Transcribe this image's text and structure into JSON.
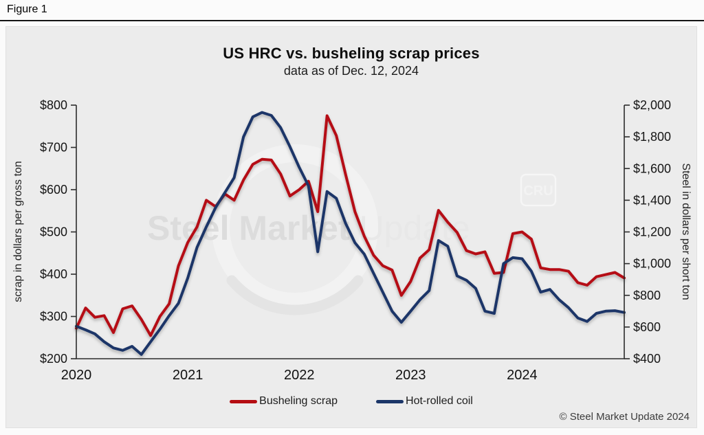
{
  "figure_label": "Figure 1",
  "chart_data": {
    "type": "line",
    "title": "US HRC vs. busheling scrap prices",
    "subtitle": "data as of Dec. 12, 2024",
    "x_unit": "month",
    "x_start": "2020-01",
    "x_end": "2024-12",
    "x_axis": {
      "tick_labels": [
        "2020",
        "2021",
        "2022",
        "2023",
        "2024"
      ],
      "months_per_tick": 12
    },
    "left_axis": {
      "label": "scrap in dollars per gross ton",
      "min": 200,
      "max": 800,
      "tick_step": 100,
      "tick_labels": [
        "$200",
        "$300",
        "$400",
        "$500",
        "$600",
        "$700",
        "$800"
      ]
    },
    "right_axis": {
      "label": "Steel in dollars per short ton",
      "min": 400,
      "max": 2000,
      "tick_step": 200,
      "tick_labels": [
        "$400",
        "$600",
        "$800",
        "$1,000",
        "$1,200",
        "$1,400",
        "$1,600",
        "$1,800",
        "$2,000"
      ]
    },
    "grid": false,
    "legend_position": "bottom",
    "series": [
      {
        "name": "Busheling scrap",
        "axis": "left",
        "color": "#b50d12",
        "values": [
          272,
          320,
          298,
          302,
          262,
          318,
          325,
          293,
          255,
          300,
          330,
          420,
          475,
          512,
          575,
          560,
          590,
          575,
          623,
          660,
          672,
          670,
          637,
          585,
          600,
          620,
          548,
          775,
          728,
          636,
          548,
          490,
          445,
          420,
          410,
          350,
          383,
          438,
          458,
          551,
          523,
          499,
          456,
          448,
          453,
          402,
          404,
          496,
          500,
          483,
          415,
          411,
          411,
          407,
          380,
          374,
          394,
          399,
          404,
          391
        ]
      },
      {
        "name": "Hot-rolled coil",
        "axis": "right",
        "color": "#1b3668",
        "values": [
          605,
          582,
          557,
          507,
          468,
          453,
          478,
          427,
          507,
          586,
          672,
          750,
          909,
          1103,
          1232,
          1354,
          1448,
          1542,
          1800,
          1926,
          1954,
          1935,
          1858,
          1738,
          1608,
          1491,
          1075,
          1455,
          1412,
          1254,
          1132,
          1060,
          940,
          820,
          700,
          630,
          700,
          772,
          830,
          1146,
          1110,
          923,
          895,
          844,
          700,
          686,
          1000,
          1038,
          1031,
          952,
          820,
          837,
          772,
          722,
          657,
          635,
          686,
          700,
          703,
          692
        ]
      }
    ]
  },
  "legend": {
    "items": [
      {
        "label": "Busheling scrap",
        "color": "#b50d12"
      },
      {
        "label": "Hot-rolled coil",
        "color": "#1b3668"
      }
    ]
  },
  "watermark": {
    "text_bold": "Steel Market",
    "text_light": "Update",
    "cru_badge": "CRU"
  },
  "footer": {
    "copyright": "© Steel Market Update 2024"
  }
}
